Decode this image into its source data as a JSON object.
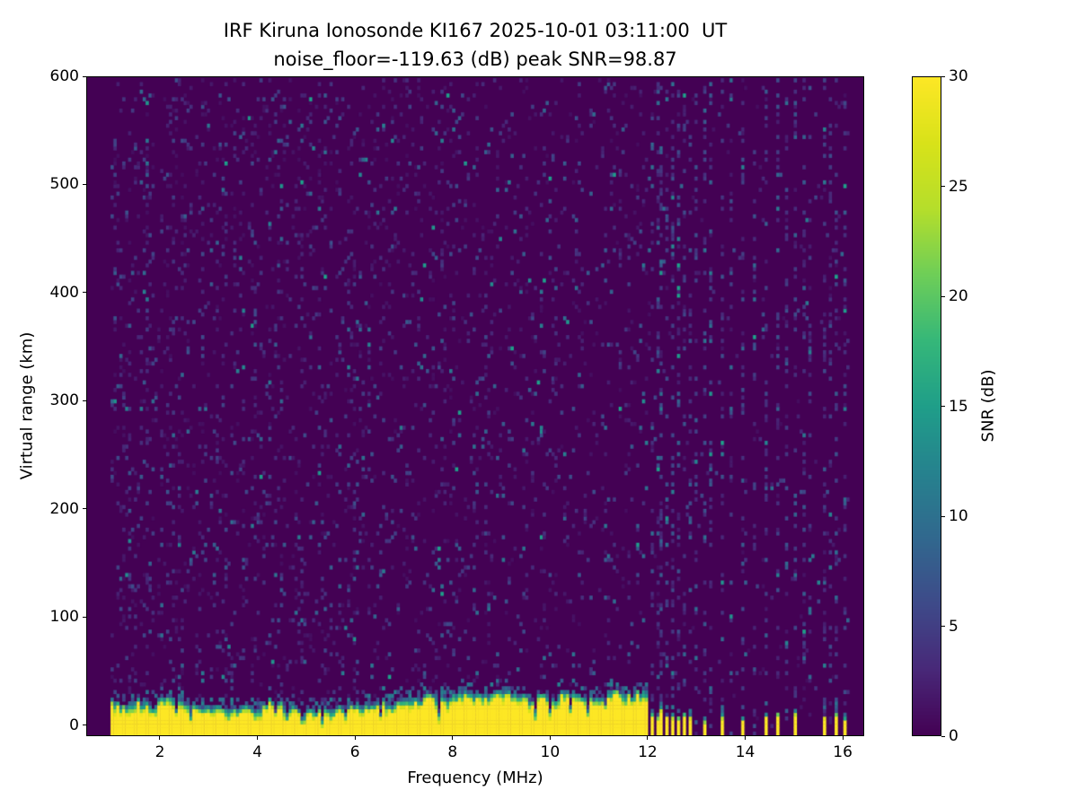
{
  "chart_data": {
    "type": "heatmap",
    "title_line1": "IRF Kiruna Ionosonde KI167 2025-10-01 03:11:00  UT",
    "title_line2": "noise_floor=-119.63 (dB) peak SNR=98.87",
    "station": "KI167",
    "timestamp_ut": "2025-10-01 03:11:00",
    "noise_floor_db": -119.63,
    "peak_snr_db": 98.87,
    "xlabel": "Frequency (MHz)",
    "ylabel": "Virtual range (km)",
    "xlim": [
      0.49,
      16.44
    ],
    "ylim": [
      -10,
      600
    ],
    "xticks": [
      2,
      4,
      6,
      8,
      10,
      12,
      14,
      16
    ],
    "yticks": [
      0,
      100,
      200,
      300,
      400,
      500,
      600
    ],
    "colorbar": {
      "label": "SNR (dB)",
      "min": 0,
      "max": 30,
      "ticks": [
        0,
        5,
        10,
        15,
        20,
        25,
        30
      ],
      "colormap": "viridis"
    },
    "data_extent": {
      "freq_min": 0.97,
      "freq_max": 16.1
    },
    "ground_echo": {
      "freq_start": 0.97,
      "freq_end": 12.0,
      "mean_top_km": 24,
      "fringe_km": 9,
      "peak_snr_db": 30
    },
    "rfi_stubs": [
      {
        "f": 12.08,
        "h": 14,
        "w": 0.05
      },
      {
        "f": 12.17,
        "h": 11,
        "w": 0.05
      },
      {
        "f": 12.27,
        "h": 15,
        "w": 0.06
      },
      {
        "f": 12.38,
        "h": 10,
        "w": 0.05
      },
      {
        "f": 12.5,
        "h": 13,
        "w": 0.05
      },
      {
        "f": 12.62,
        "h": 9,
        "w": 0.05
      },
      {
        "f": 12.74,
        "h": 14,
        "w": 0.06
      },
      {
        "f": 12.87,
        "h": 10,
        "w": 0.05
      },
      {
        "f": 13.0,
        "h": 13,
        "w": 0.05
      },
      {
        "f": 13.13,
        "h": 9,
        "w": 0.05
      },
      {
        "f": 13.3,
        "h": 7,
        "w": 0.05
      },
      {
        "f": 13.52,
        "h": 13,
        "w": 0.06
      },
      {
        "f": 13.95,
        "h": 9,
        "w": 0.05
      },
      {
        "f": 14.42,
        "h": 13,
        "w": 0.06
      },
      {
        "f": 14.64,
        "h": 11,
        "w": 0.05
      },
      {
        "f": 15.0,
        "h": 13,
        "w": 0.06
      },
      {
        "f": 15.34,
        "h": 9,
        "w": 0.05
      },
      {
        "f": 15.6,
        "h": 7,
        "w": 0.05
      },
      {
        "f": 15.88,
        "h": 12,
        "w": 0.06
      },
      {
        "f": 16.02,
        "h": 11,
        "w": 0.05
      }
    ],
    "rfi_stripe_freqs": [
      12.08,
      12.17,
      12.27,
      12.38,
      12.5,
      12.62,
      12.74,
      12.87,
      13.0,
      13.13,
      13.3,
      13.52,
      13.72,
      13.95,
      14.18,
      14.42,
      14.64,
      14.85,
      15.0,
      15.18,
      15.34,
      15.6,
      15.76,
      15.88,
      16.02
    ],
    "noise_speckle": {
      "density_at_1mhz": 0.105,
      "density_slope_per_mhz": -0.004,
      "density_above_band_end": 0.015,
      "mean_db": 3.4
    },
    "seed": 7
  }
}
